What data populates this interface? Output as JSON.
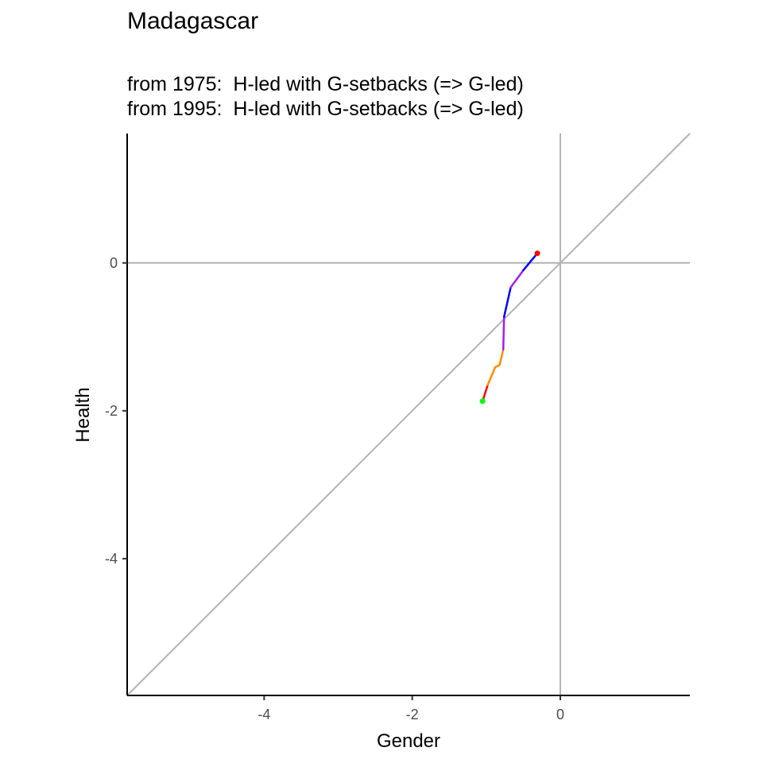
{
  "chart_data": {
    "type": "line",
    "title": "Madagascar",
    "subtitle_lines": [
      "from 1975:  H-led with G-setbacks (=> G-led)",
      "from 1995:  H-led with G-setbacks (=> G-led)"
    ],
    "xlabel": "Gender",
    "ylabel": "Health",
    "xlim": [
      -5.85,
      1.75
    ],
    "ylim": [
      -5.85,
      1.75
    ],
    "x_ticks": [
      -4,
      -2,
      0
    ],
    "y_ticks": [
      0,
      -2,
      -4
    ],
    "x_tick_labels": [
      "-4",
      "-2",
      "0"
    ],
    "y_tick_labels": [
      "0",
      "-2",
      "-4"
    ],
    "grid": false,
    "reference_lines": {
      "horizontal_zero": true,
      "vertical_zero": true,
      "diagonal_identity": true,
      "color": "#b3b3b3"
    },
    "series": [
      {
        "segments": [
          {
            "color": "#ff0000",
            "points": [
              [
                -1.05,
                -1.87
              ],
              [
                -0.98,
                -1.65
              ]
            ]
          },
          {
            "color": "#ff8c00",
            "points": [
              [
                -0.98,
                -1.65
              ],
              [
                -0.88,
                -1.41
              ],
              [
                -0.82,
                -1.38
              ],
              [
                -0.77,
                -1.17
              ]
            ]
          },
          {
            "color": "#a020f0",
            "points": [
              [
                -0.77,
                -1.17
              ],
              [
                -0.76,
                -0.73
              ]
            ]
          },
          {
            "color": "#0000ff",
            "points": [
              [
                -0.76,
                -0.73
              ],
              [
                -0.67,
                -0.33
              ]
            ]
          },
          {
            "color": "#a020f0",
            "points": [
              [
                -0.67,
                -0.33
              ],
              [
                -0.5,
                -0.1
              ]
            ]
          },
          {
            "color": "#0000ff",
            "points": [
              [
                -0.5,
                -0.1
              ],
              [
                -0.31,
                0.13
              ]
            ]
          }
        ],
        "start_point": {
          "x": -1.05,
          "y": -1.87,
          "color": "#00ff00"
        },
        "end_point": {
          "x": -0.31,
          "y": 0.13,
          "color": "#ff0000"
        }
      }
    ]
  }
}
